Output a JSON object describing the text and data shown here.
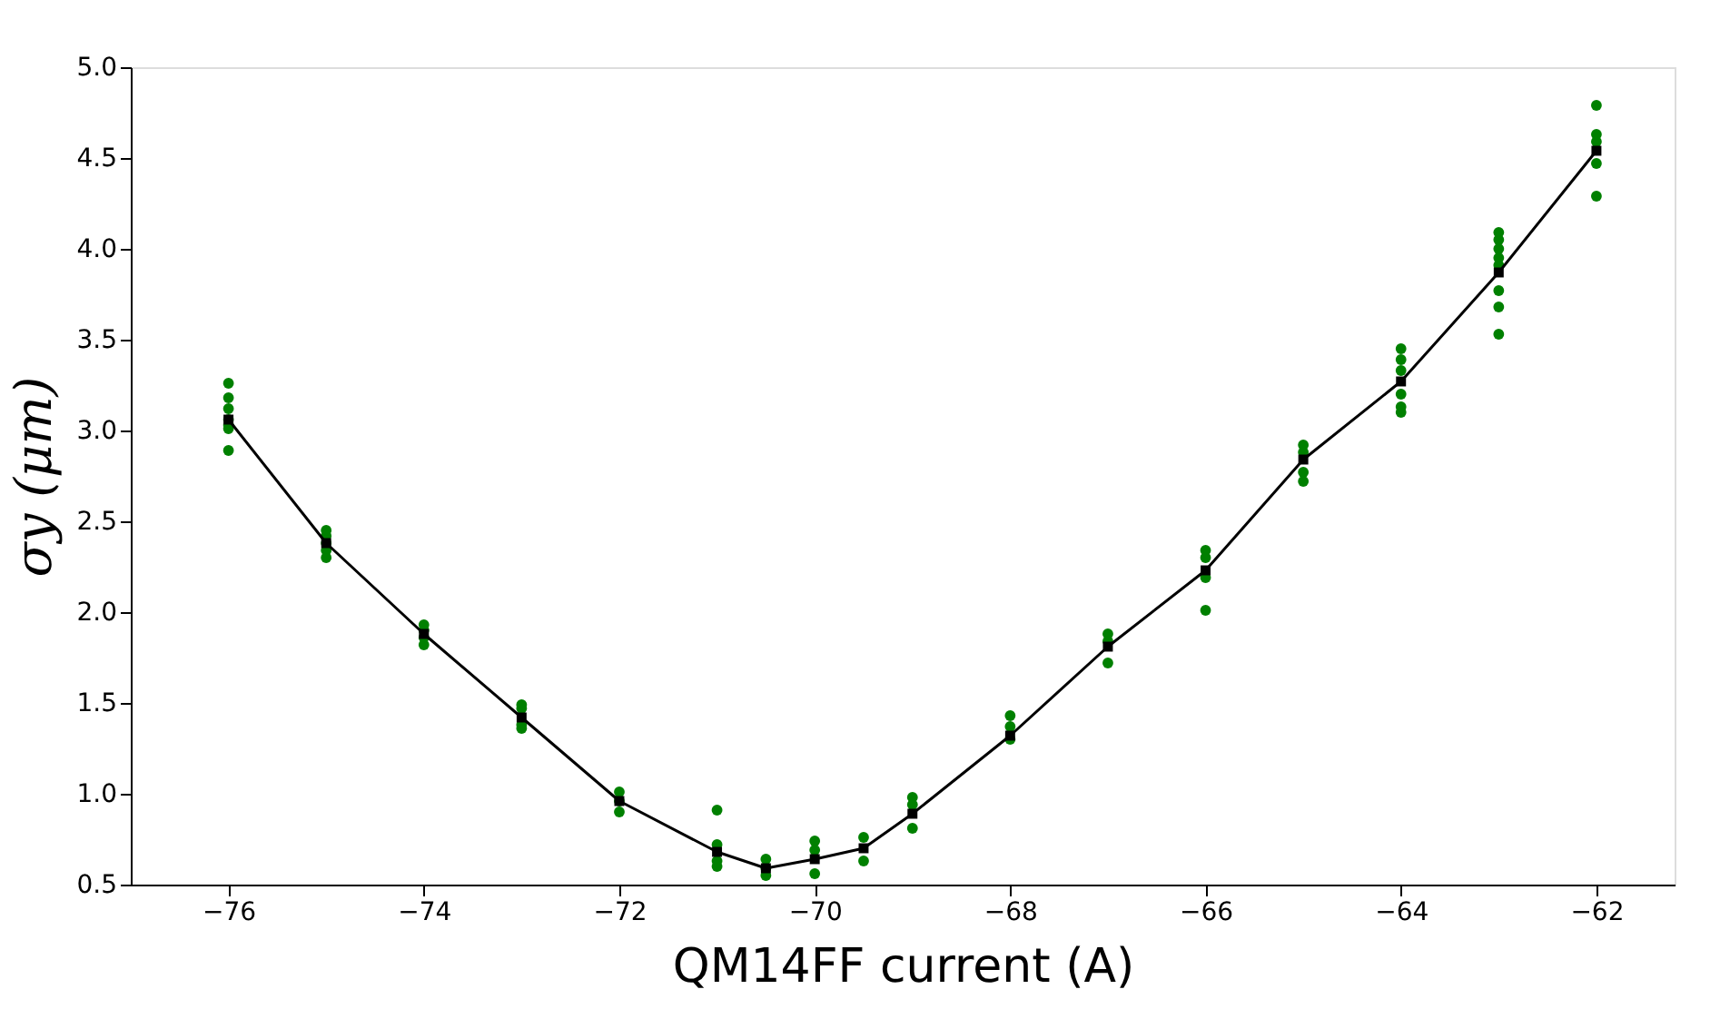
{
  "chart_data": {
    "type": "scatter",
    "xlabel": "QM14FF current (A)",
    "ylabel": "σy (μm)",
    "xlim": [
      -77,
      -61.2
    ],
    "ylim": [
      0.5,
      5.0
    ],
    "xticks": [
      {
        "value": -76,
        "label": "−76"
      },
      {
        "value": -74,
        "label": "−74"
      },
      {
        "value": -72,
        "label": "−72"
      },
      {
        "value": -70,
        "label": "−70"
      },
      {
        "value": -68,
        "label": "−68"
      },
      {
        "value": -66,
        "label": "−66"
      },
      {
        "value": -64,
        "label": "−64"
      },
      {
        "value": -62,
        "label": "−62"
      }
    ],
    "yticks": [
      0.5,
      {
        "value": 1,
        "label": "1.0"
      },
      1.5,
      {
        "value": 2,
        "label": "2.0"
      },
      2.5,
      {
        "value": 3,
        "label": "3.0"
      },
      3.5,
      {
        "value": 4,
        "label": "4.0"
      },
      4.5,
      {
        "value": 5,
        "label": "5.0"
      }
    ],
    "grid": false,
    "legend": false,
    "series": [
      {
        "marker": "circle",
        "color": "#008000",
        "x": [
          -76,
          -76,
          -76,
          -76,
          -76,
          -76,
          -76,
          -75,
          -75,
          -75,
          -75,
          -75,
          -74,
          -74,
          -74,
          -74,
          -73,
          -73,
          -73,
          -73,
          -72,
          -72,
          -72,
          -71,
          -71,
          -71,
          -71,
          -70.5,
          -70.5,
          -70.5,
          -70,
          -70,
          -70,
          -69.5,
          -69.5,
          -69,
          -69,
          -69,
          -68,
          -68,
          -68,
          -67,
          -67,
          -67,
          -66,
          -66,
          -66,
          -66,
          -65,
          -65,
          -65,
          -65,
          -64,
          -64,
          -64,
          -64,
          -64,
          -64,
          -63,
          -63,
          -63,
          -63,
          -63,
          -63,
          -63,
          -63,
          -62,
          -62,
          -62,
          -62,
          -62
        ],
        "values": [
          3.26,
          3.18,
          3.12,
          3.06,
          3.03,
          3.01,
          2.89,
          2.45,
          2.42,
          2.38,
          2.34,
          2.3,
          1.93,
          1.9,
          1.86,
          1.82,
          1.49,
          1.47,
          1.38,
          1.36,
          1.01,
          0.96,
          0.9,
          0.91,
          0.72,
          0.63,
          0.6,
          0.64,
          0.59,
          0.55,
          0.74,
          0.69,
          0.56,
          0.76,
          0.63,
          0.98,
          0.94,
          0.81,
          1.43,
          1.37,
          1.3,
          1.88,
          1.84,
          1.72,
          2.34,
          2.3,
          2.19,
          2.01,
          2.92,
          2.88,
          2.77,
          2.72,
          3.45,
          3.39,
          3.33,
          3.2,
          3.13,
          3.1,
          4.09,
          4.05,
          4.0,
          3.95,
          3.91,
          3.77,
          3.68,
          3.53,
          4.79,
          4.63,
          4.59,
          4.47,
          4.29
        ]
      },
      {
        "type": "line",
        "marker": "square",
        "line_style": "solid",
        "color": "#000000",
        "x": [
          -76,
          -75,
          -74,
          -73,
          -72,
          -71,
          -70.5,
          -70,
          -69.5,
          -69,
          -68,
          -67,
          -66,
          -65,
          -64,
          -63,
          -62
        ],
        "values": [
          3.06,
          2.38,
          1.88,
          1.42,
          0.96,
          0.68,
          0.59,
          0.64,
          0.7,
          0.89,
          1.32,
          1.81,
          2.23,
          2.84,
          3.27,
          3.87,
          4.54
        ]
      }
    ]
  }
}
